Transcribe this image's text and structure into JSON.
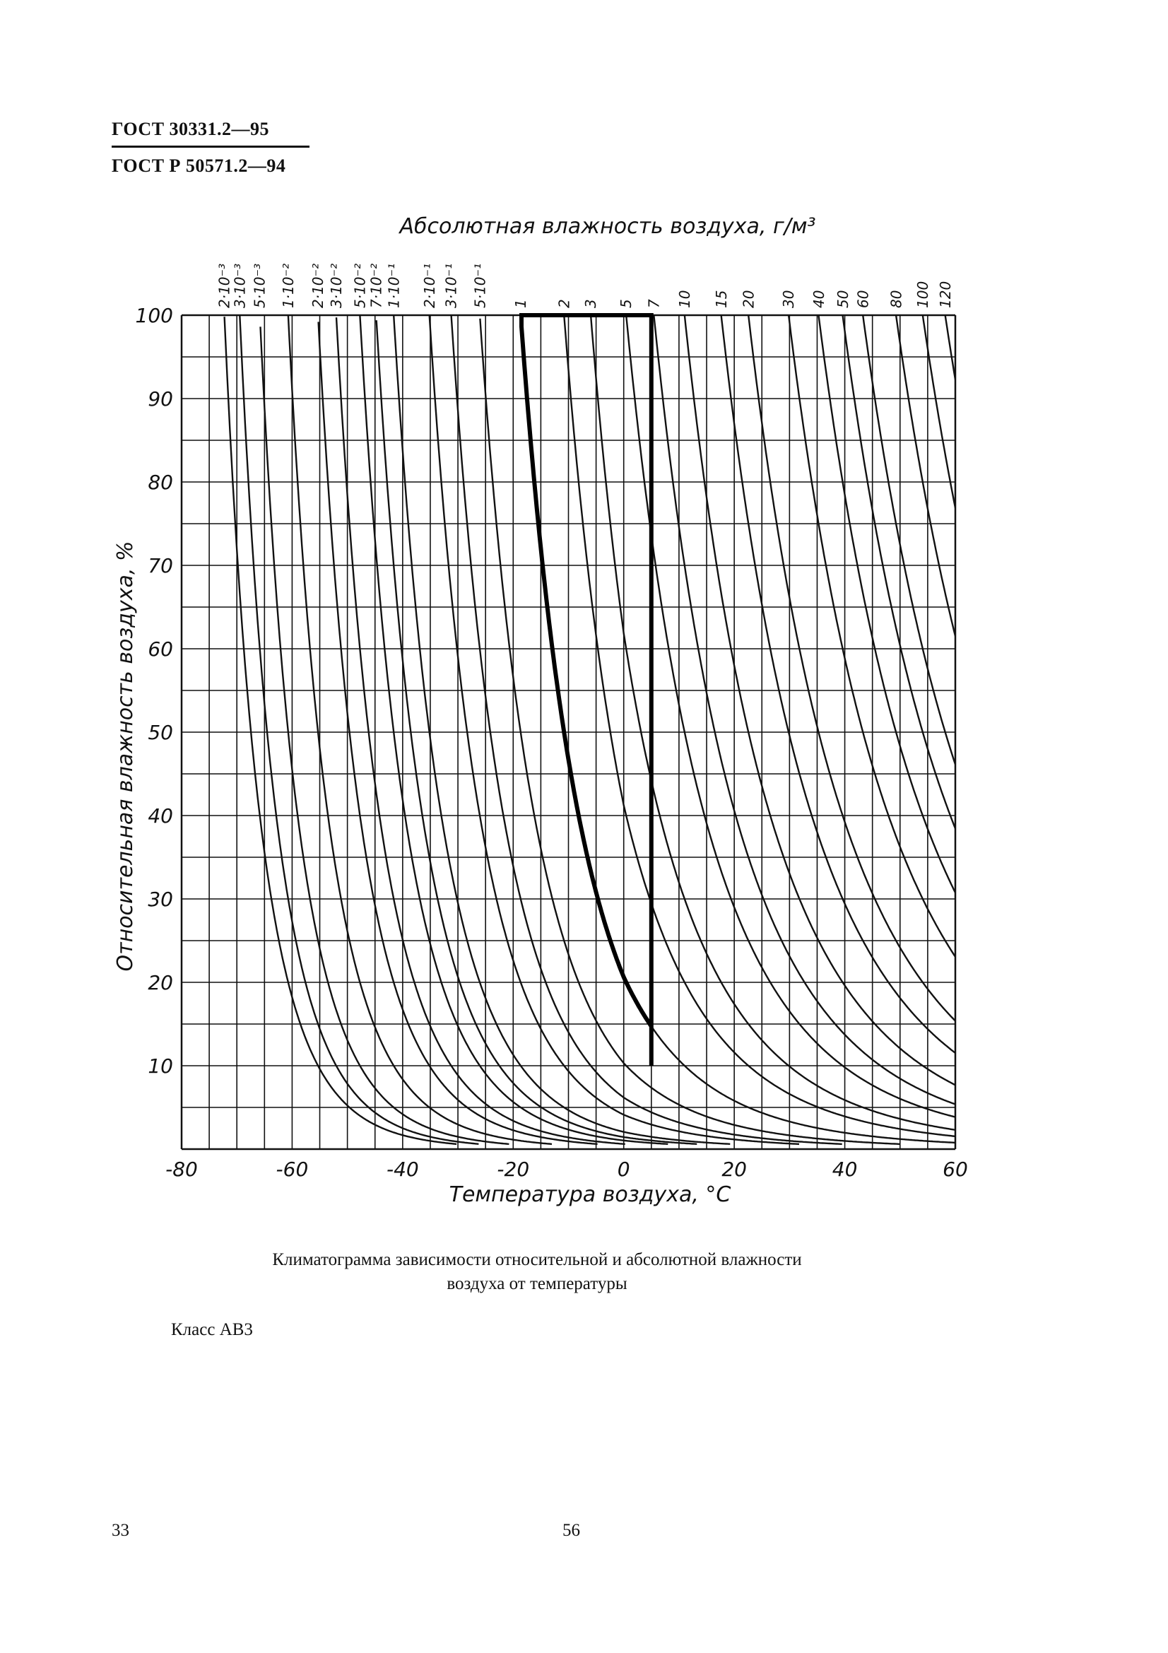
{
  "header": {
    "std1": "ГОСТ 30331.2—95",
    "std2": "ГОСТ Р 50571.2—94"
  },
  "chart_data": {
    "type": "line",
    "title": "Абсолютная влажность воздуха, г/м³",
    "xlabel": "Температура воздуха, °C",
    "ylabel": "Относительная влажность воздуха, %",
    "xlim": [
      -80,
      60
    ],
    "ylim": [
      0,
      100
    ],
    "x_ticks": [
      "-80",
      "-60",
      "-40",
      "-20",
      "0",
      "20",
      "40",
      "60"
    ],
    "y_ticks": [
      "10",
      "20",
      "30",
      "40",
      "50",
      "60",
      "70",
      "80",
      "90",
      "100"
    ],
    "x_gridlines_every": 5,
    "y_gridlines_every": 5,
    "grid": true,
    "series": [
      {
        "name": "2·10⁻³",
        "values_g_m3": 0.002
      },
      {
        "name": "3·10⁻³",
        "values_g_m3": 0.003
      },
      {
        "name": "5·10⁻³",
        "values_g_m3": 0.005
      },
      {
        "name": "1·10⁻²",
        "values_g_m3": 0.01
      },
      {
        "name": "2·10⁻²",
        "values_g_m3": 0.02
      },
      {
        "name": "3·10⁻²",
        "values_g_m3": 0.03
      },
      {
        "name": "5·10⁻²",
        "values_g_m3": 0.05
      },
      {
        "name": "7·10⁻²",
        "values_g_m3": 0.07
      },
      {
        "name": "1·10⁻¹",
        "values_g_m3": 0.1
      },
      {
        "name": "2·10⁻¹",
        "values_g_m3": 0.2
      },
      {
        "name": "3·10⁻¹",
        "values_g_m3": 0.3
      },
      {
        "name": "5·10⁻¹",
        "values_g_m3": 0.5
      },
      {
        "name": "1",
        "values_g_m3": 1
      },
      {
        "name": "2",
        "values_g_m3": 2
      },
      {
        "name": "3",
        "values_g_m3": 3
      },
      {
        "name": "5",
        "values_g_m3": 5
      },
      {
        "name": "7",
        "values_g_m3": 7
      },
      {
        "name": "10",
        "values_g_m3": 10
      },
      {
        "name": "15",
        "values_g_m3": 15
      },
      {
        "name": "20",
        "values_g_m3": 20
      },
      {
        "name": "30",
        "values_g_m3": 30
      },
      {
        "name": "40",
        "values_g_m3": 40
      },
      {
        "name": "50",
        "values_g_m3": 50
      },
      {
        "name": "60",
        "values_g_m3": 60
      },
      {
        "name": "80",
        "values_g_m3": 80
      },
      {
        "name": "100",
        "values_g_m3": 100
      },
      {
        "name": "120",
        "values_g_m3": 120
      }
    ],
    "class_region": {
      "boundary_curve_g_m3": 1,
      "t_max_c": 5,
      "rh_min_pct": 10,
      "rh_max_pct": 100
    }
  },
  "caption": {
    "line1": "Климатограмма зависимости относительной и абсолютной влажности",
    "line2": "воздуха от температуры"
  },
  "class_label": "Класс АВ3",
  "footer": {
    "left_page": "33",
    "center_page": "56"
  }
}
